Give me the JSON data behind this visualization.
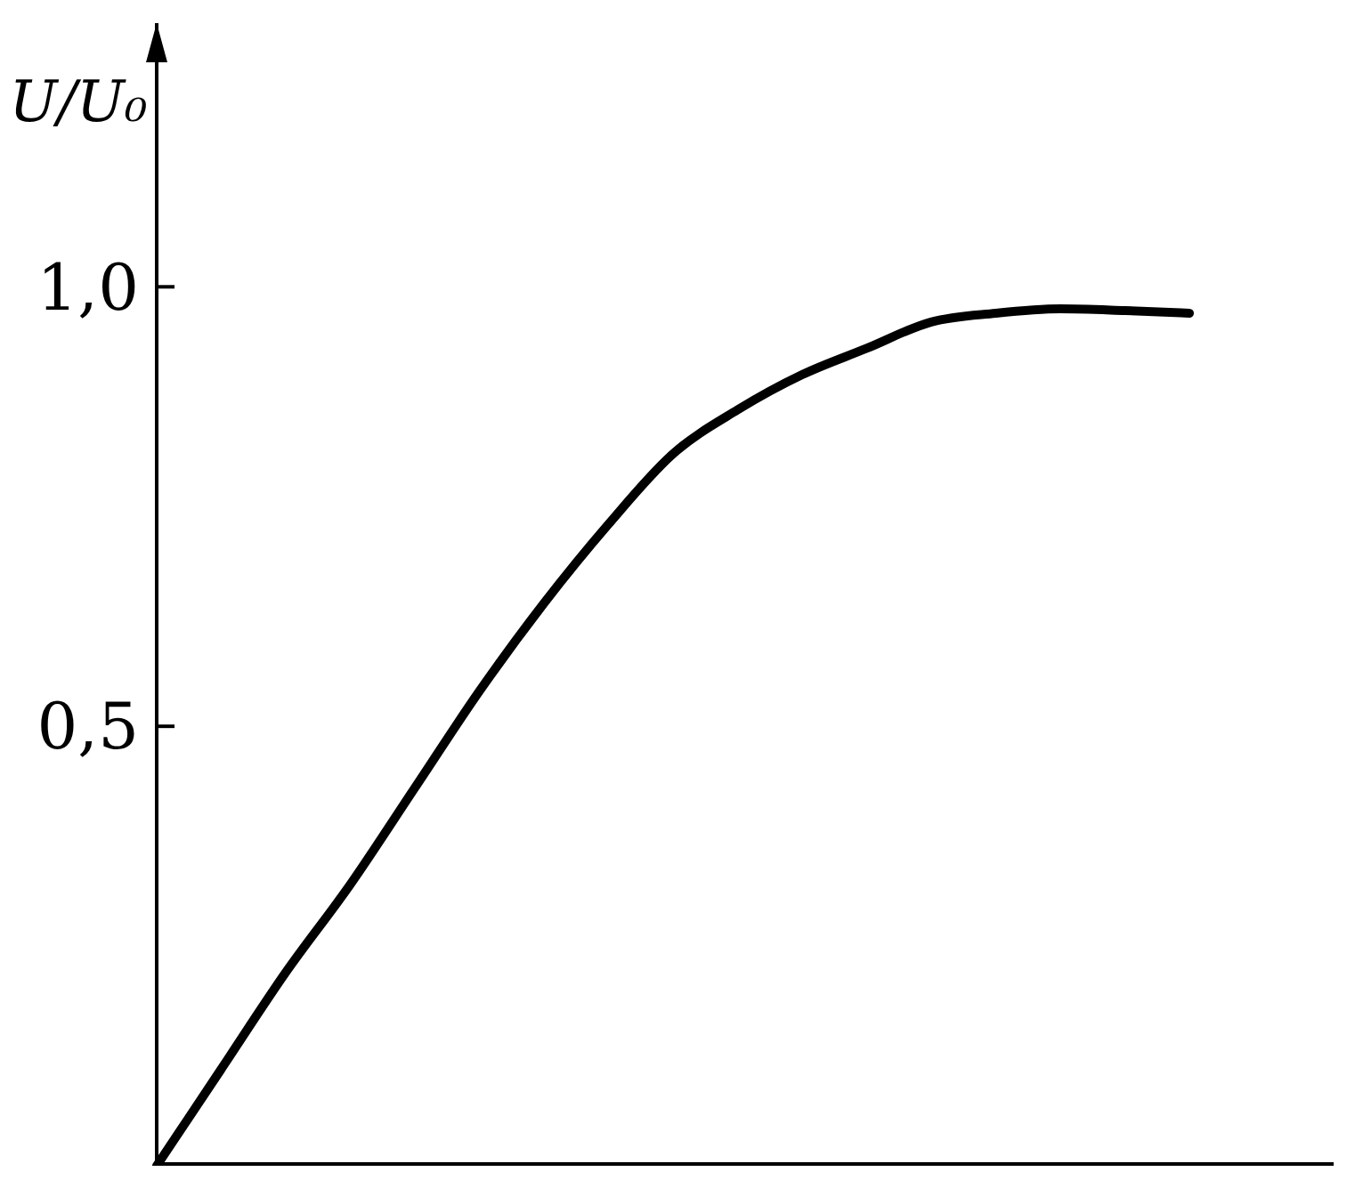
{
  "chart_data": {
    "type": "line",
    "ylabel": "U/U₀",
    "categories": [
      null,
      null,
      null,
      null,
      null,
      null,
      null,
      null,
      null,
      null,
      null,
      null,
      null,
      null,
      null,
      null,
      null
    ],
    "series": [
      {
        "color": "#000000",
        "values": [
          0,
          0.11,
          0.22,
          0.32,
          0.43,
          0.54,
          0.64,
          0.73,
          0.81,
          0.86,
          0.9,
          0.93,
          0.96,
          0.97,
          0.975,
          0.973,
          0.97
        ]
      }
    ],
    "ylim": [
      0,
      1.3
    ],
    "yticks": [
      {
        "value": 0.5,
        "label": "0,5"
      },
      {
        "value": 1,
        "label": "1,0"
      }
    ],
    "grid": false,
    "marker": "none",
    "line_style": "solid"
  }
}
